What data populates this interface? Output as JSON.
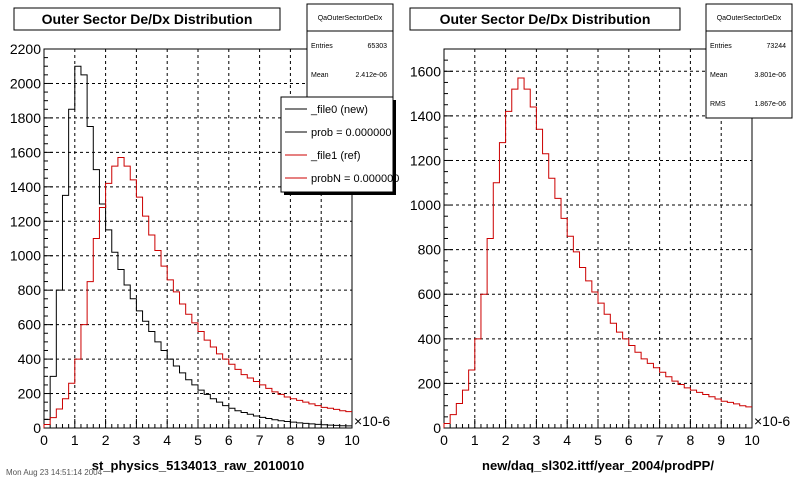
{
  "chart_data": [
    {
      "type": "line",
      "title": "Outer Sector De/Dx Distribution",
      "xlabel": "st_physics_5134013_raw_2010010",
      "ylabel": "",
      "x_multiplier": "×10-6",
      "xlim": [
        0,
        10
      ],
      "ylim": [
        0,
        2200
      ],
      "xticks": [
        "0",
        "1",
        "2",
        "3",
        "4",
        "5",
        "6",
        "7",
        "8",
        "9",
        "10"
      ],
      "yticks": [
        "0",
        "200",
        "400",
        "600",
        "800",
        "1000",
        "1200",
        "1400",
        "1600",
        "1800",
        "2000",
        "2200"
      ],
      "grid": true,
      "stats": {
        "name": "QaOuterSectorDeDx",
        "entries_label": "Entries",
        "entries": "65303",
        "mean_label": "Mean",
        "mean": "2.412e-06"
      },
      "legend": {
        "position": "top-right",
        "entries": [
          "_file0 (new)",
          "prob = 0.000000",
          "_file1 (ref)",
          "probN = 0.000000"
        ]
      },
      "x": [
        0.1,
        0.3,
        0.5,
        0.7,
        0.9,
        1.1,
        1.3,
        1.5,
        1.7,
        1.9,
        2.1,
        2.3,
        2.5,
        2.7,
        2.9,
        3.1,
        3.3,
        3.5,
        3.7,
        3.9,
        4.1,
        4.3,
        4.5,
        4.7,
        4.9,
        5.1,
        5.3,
        5.5,
        5.7,
        5.9,
        6.1,
        6.3,
        6.5,
        6.7,
        6.9,
        7.1,
        7.3,
        7.5,
        7.7,
        7.9,
        8.1,
        8.3,
        8.5,
        8.7,
        8.9,
        9.1,
        9.3,
        9.5,
        9.7,
        9.9
      ],
      "series": [
        {
          "name": "_file0 (new)",
          "color": "#000000",
          "values": [
            50,
            300,
            800,
            1350,
            1850,
            2100,
            2050,
            1750,
            1500,
            1300,
            1150,
            1020,
            920,
            830,
            750,
            680,
            620,
            560,
            500,
            450,
            400,
            360,
            320,
            280,
            250,
            220,
            195,
            170,
            150,
            130,
            115,
            100,
            90,
            80,
            70,
            62,
            55,
            48,
            42,
            38,
            34,
            30,
            27,
            24,
            21,
            19,
            17,
            15,
            13,
            12
          ]
        },
        {
          "name": "_file1 (ref)",
          "color": "#cc0000",
          "values": [
            20,
            60,
            110,
            170,
            260,
            400,
            600,
            850,
            1100,
            1280,
            1420,
            1520,
            1570,
            1520,
            1440,
            1340,
            1230,
            1120,
            1030,
            940,
            860,
            790,
            720,
            660,
            610,
            560,
            510,
            470,
            430,
            400,
            370,
            340,
            310,
            290,
            270,
            250,
            230,
            210,
            195,
            180,
            170,
            160,
            150,
            140,
            130,
            120,
            115,
            108,
            100,
            95
          ]
        }
      ]
    },
    {
      "type": "line",
      "title": "Outer Sector De/Dx Distribution",
      "xlabel": "new/daq_sl302.ittf/year_2004/prodPP/",
      "ylabel": "",
      "x_multiplier": "×10-6",
      "xlim": [
        0,
        10
      ],
      "ylim": [
        0,
        1700
      ],
      "xticks": [
        "0",
        "1",
        "2",
        "3",
        "4",
        "5",
        "6",
        "7",
        "8",
        "9",
        "10"
      ],
      "yticks": [
        "0",
        "200",
        "400",
        "600",
        "800",
        "1000",
        "1200",
        "1400",
        "1600"
      ],
      "grid": true,
      "stats": {
        "name": "QaOuterSectorDeDx",
        "entries_label": "Entries",
        "entries": "73244",
        "mean_label": "Mean",
        "mean": "3.801e-06",
        "rms_label": "RMS",
        "rms": "1.867e-06"
      },
      "x": [
        0.1,
        0.3,
        0.5,
        0.7,
        0.9,
        1.1,
        1.3,
        1.5,
        1.7,
        1.9,
        2.1,
        2.3,
        2.5,
        2.7,
        2.9,
        3.1,
        3.3,
        3.5,
        3.7,
        3.9,
        4.1,
        4.3,
        4.5,
        4.7,
        4.9,
        5.1,
        5.3,
        5.5,
        5.7,
        5.9,
        6.1,
        6.3,
        6.5,
        6.7,
        6.9,
        7.1,
        7.3,
        7.5,
        7.7,
        7.9,
        8.1,
        8.3,
        8.5,
        8.7,
        8.9,
        9.1,
        9.3,
        9.5,
        9.7,
        9.9
      ],
      "series": [
        {
          "name": "",
          "color": "#cc0000",
          "values": [
            20,
            60,
            110,
            170,
            260,
            400,
            600,
            850,
            1100,
            1280,
            1420,
            1520,
            1570,
            1520,
            1440,
            1340,
            1230,
            1120,
            1030,
            940,
            860,
            790,
            720,
            660,
            610,
            560,
            510,
            470,
            430,
            400,
            370,
            340,
            310,
            290,
            270,
            250,
            230,
            210,
            195,
            180,
            170,
            160,
            150,
            140,
            130,
            120,
            115,
            108,
            100,
            95
          ]
        }
      ]
    }
  ],
  "footer": {
    "text": "Mon Aug 23 14:51:14 2004"
  }
}
